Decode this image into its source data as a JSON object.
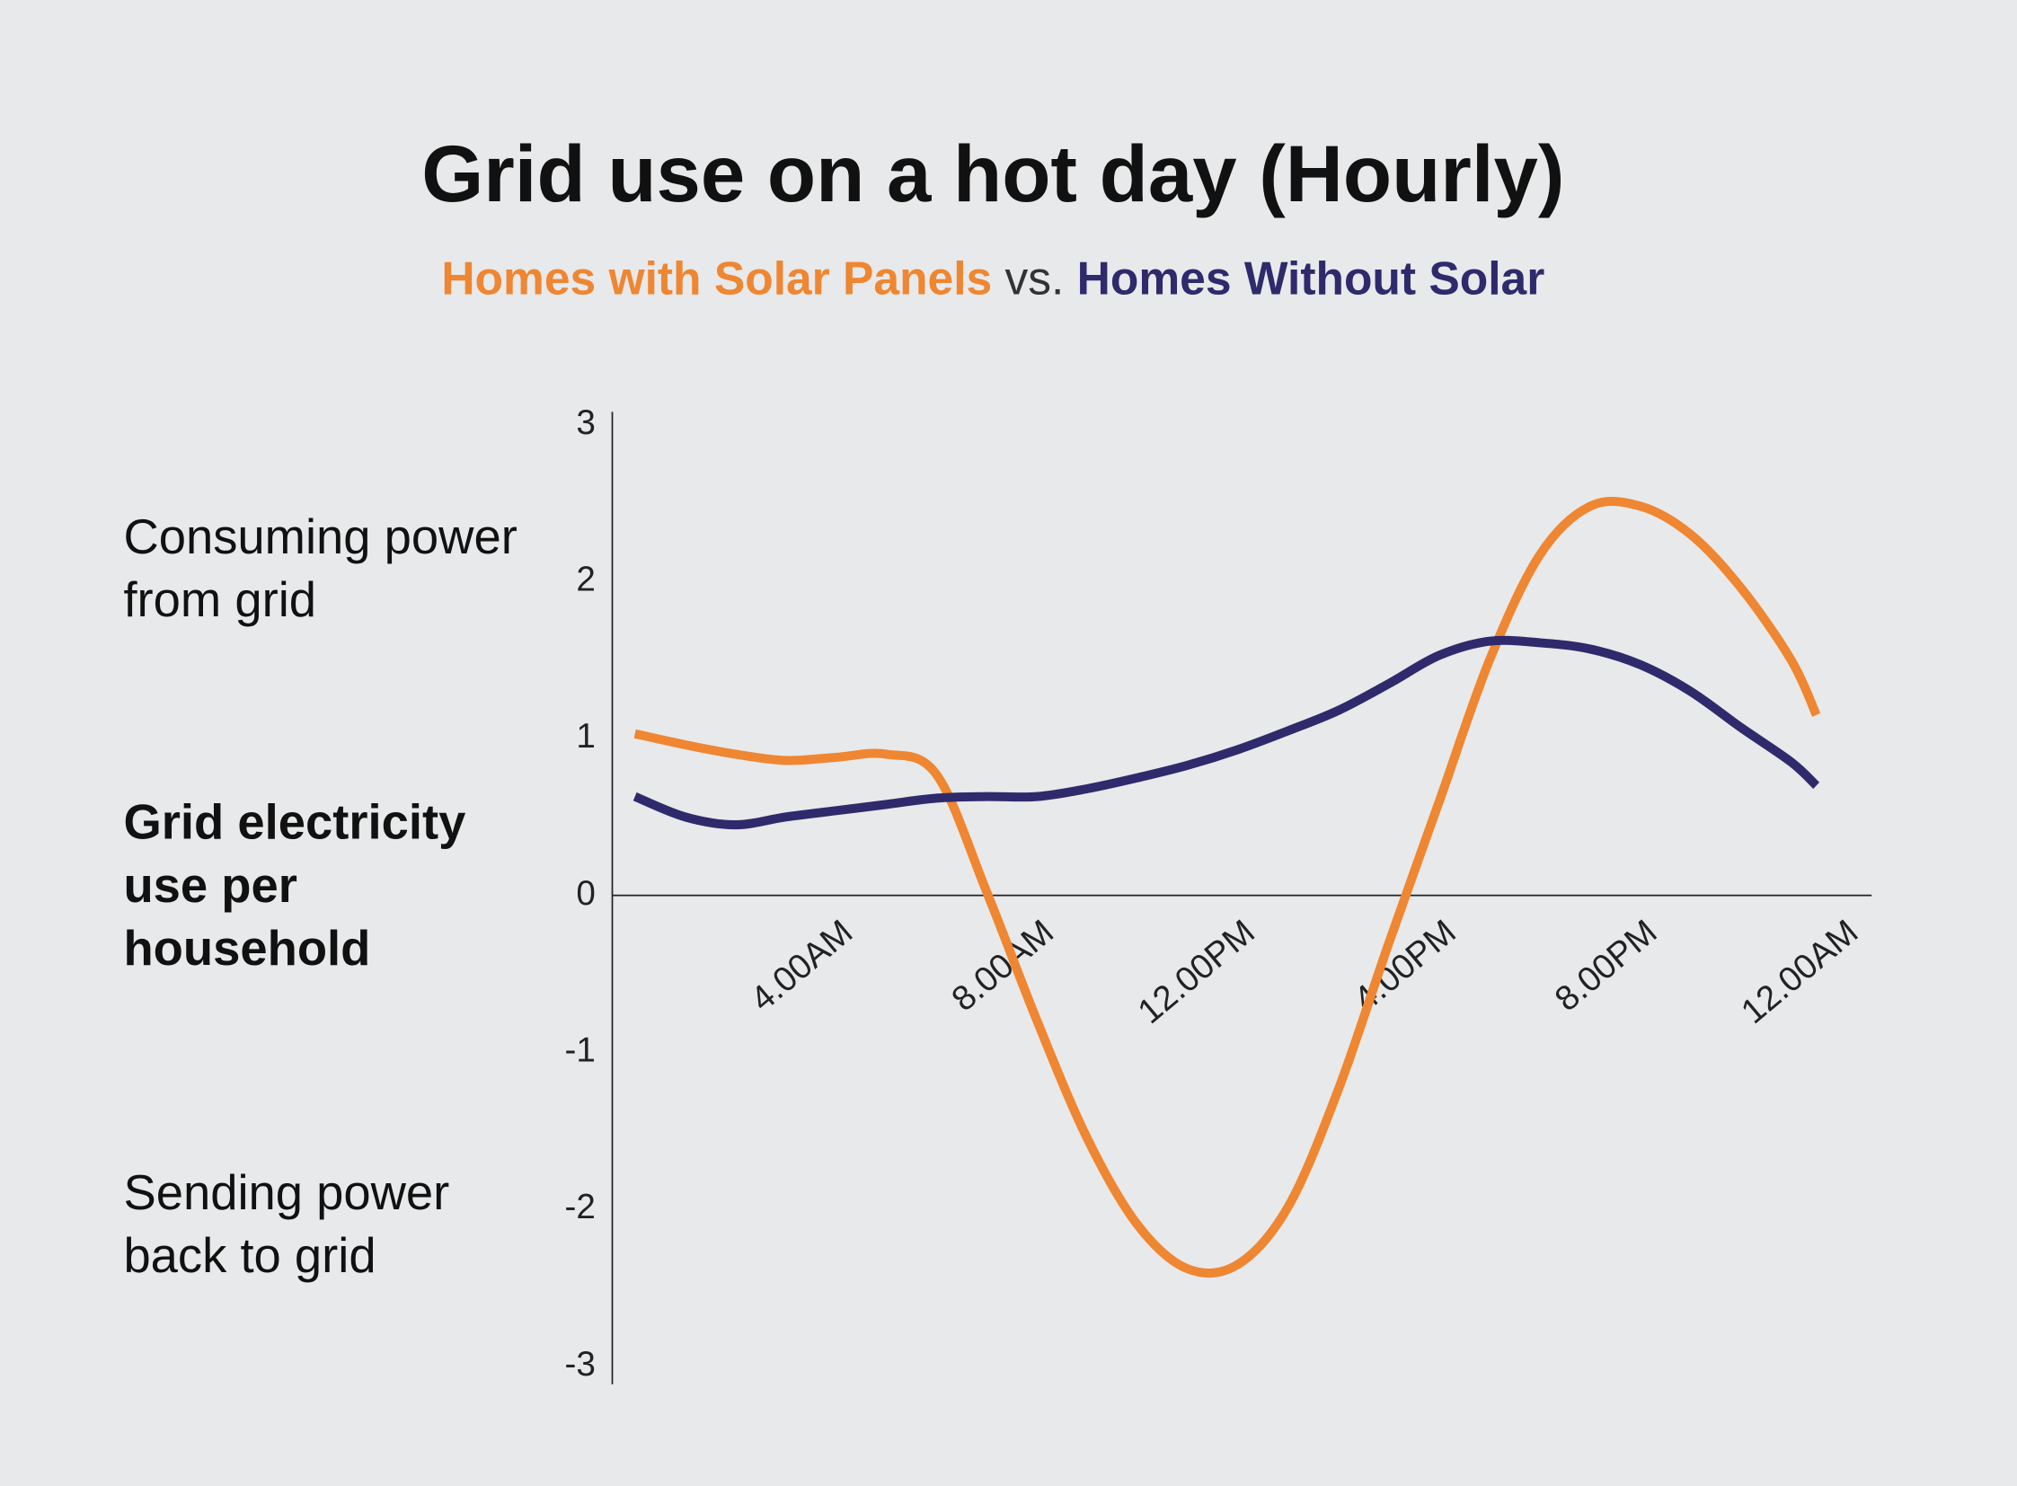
{
  "chart_data": {
    "type": "line",
    "title": "Grid use on a hot day (Hourly)",
    "subtitle_joiner": "vs.",
    "annotations": [
      {
        "lines": [
          "Consuming power",
          "from grid"
        ],
        "bold": false
      },
      {
        "lines": [
          "Grid electricity",
          "use per",
          "household"
        ],
        "bold": true
      },
      {
        "lines": [
          "Sending power",
          "back to grid"
        ],
        "bold": false
      }
    ],
    "x": [
      0,
      1,
      2,
      3,
      4,
      5,
      6,
      7,
      8,
      9,
      10,
      11,
      12,
      13,
      14,
      15,
      16,
      17,
      18,
      19,
      20,
      21,
      22,
      23,
      23.5
    ],
    "series": [
      {
        "name": "Homes with Solar Panels",
        "color": "#ef8632",
        "values": [
          1.03,
          0.96,
          0.9,
          0.86,
          0.88,
          0.9,
          0.77,
          0.02,
          -0.8,
          -1.55,
          -2.1,
          -2.38,
          -2.35,
          -1.98,
          -1.23,
          -0.3,
          0.6,
          1.5,
          2.17,
          2.48,
          2.48,
          2.3,
          1.96,
          1.5,
          1.15
        ]
      },
      {
        "name": "Homes Without Solar",
        "color": "#2e2a6c",
        "values": [
          0.63,
          0.5,
          0.45,
          0.5,
          0.54,
          0.58,
          0.62,
          0.63,
          0.63,
          0.68,
          0.75,
          0.83,
          0.93,
          1.05,
          1.18,
          1.35,
          1.53,
          1.62,
          1.61,
          1.57,
          1.47,
          1.3,
          1.07,
          0.85,
          0.7
        ]
      }
    ],
    "xlim": [
      -0.45,
      24.6
    ],
    "xticks": [
      {
        "value": 4,
        "label": "4.00AM"
      },
      {
        "value": 8,
        "label": "8.00AM"
      },
      {
        "value": 12,
        "label": "12.00PM"
      },
      {
        "value": 16,
        "label": "4.00PM"
      },
      {
        "value": 20,
        "label": "8.00PM"
      },
      {
        "value": 24,
        "label": "12.00AM"
      }
    ],
    "ylim": [
      -3,
      3
    ],
    "yticks": [
      3,
      2,
      1,
      0,
      -1,
      -2,
      -3
    ],
    "grid": false
  }
}
